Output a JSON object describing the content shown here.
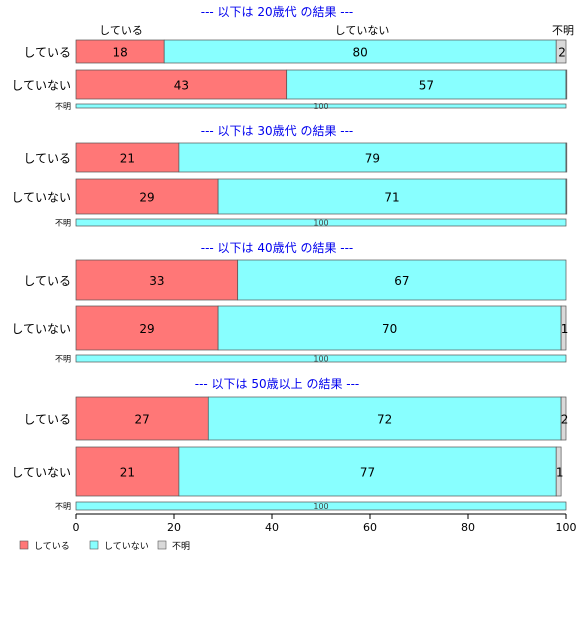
{
  "chart_data": {
    "type": "bar",
    "orientation": "horizontal",
    "stacked": "percent",
    "column_headers": [
      "している",
      "していない",
      "不明"
    ],
    "series_colors": [
      "#ff7777",
      "#88ffff",
      "#d9d9d9"
    ],
    "title_color": "#0000ee",
    "xlim": [
      0,
      100
    ],
    "xticks": [
      "0",
      "20",
      "40",
      "60",
      "80",
      "100"
    ],
    "legend": {
      "position": "bottom-left",
      "entries": [
        "している",
        "していない",
        "不明"
      ]
    },
    "panels": [
      {
        "title": "--- 以下は 20歳代 の結果 ---",
        "rows": [
          {
            "label": "している",
            "values": [
              18,
              80,
              2
            ],
            "value_labels": [
              "18",
              "80",
              "2"
            ]
          },
          {
            "label": "していない",
            "values": [
              43,
              57,
              0.4
            ],
            "value_labels": [
              "43",
              "57",
              ""
            ]
          },
          {
            "label": "不明",
            "values": [
              0,
              100,
              0
            ],
            "value_labels": [
              "",
              "100",
              ""
            ]
          }
        ]
      },
      {
        "title": "--- 以下は 30歳代 の結果 ---",
        "rows": [
          {
            "label": "している",
            "values": [
              21,
              79,
              0.3
            ],
            "value_labels": [
              "21",
              "79",
              ""
            ]
          },
          {
            "label": "していない",
            "values": [
              29,
              71,
              0.3
            ],
            "value_labels": [
              "29",
              "71",
              ""
            ]
          },
          {
            "label": "不明",
            "values": [
              0,
              100,
              0
            ],
            "value_labels": [
              "",
              "100",
              ""
            ]
          }
        ]
      },
      {
        "title": "--- 以下は 40歳代 の結果 ---",
        "rows": [
          {
            "label": "している",
            "values": [
              33,
              67,
              0
            ],
            "value_labels": [
              "33",
              "67",
              ""
            ]
          },
          {
            "label": "していない",
            "values": [
              29,
              70,
              1
            ],
            "value_labels": [
              "29",
              "70",
              "1"
            ]
          },
          {
            "label": "不明",
            "values": [
              0,
              100,
              0
            ],
            "value_labels": [
              "",
              "100",
              ""
            ]
          }
        ]
      },
      {
        "title": "--- 以下は 50歳以上 の結果 ---",
        "rows": [
          {
            "label": "している",
            "values": [
              27,
              72,
              2
            ],
            "value_labels": [
              "27",
              "72",
              "2"
            ]
          },
          {
            "label": "していない",
            "values": [
              21,
              77,
              1
            ],
            "value_labels": [
              "21",
              "77",
              "1"
            ]
          },
          {
            "label": "不明",
            "values": [
              0,
              100,
              0
            ],
            "value_labels": [
              "",
              "100",
              ""
            ]
          }
        ]
      }
    ]
  }
}
